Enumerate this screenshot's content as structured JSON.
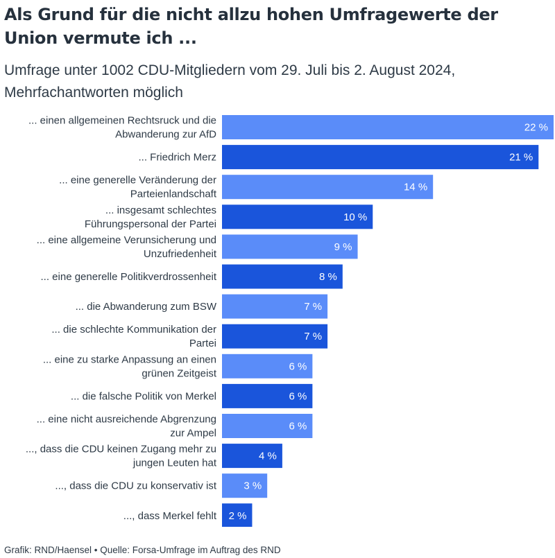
{
  "title": "Als Grund für die nicht allzu hohen Umfragewerte der Union vermute ich ...",
  "subtitle": "Umfrage unter 1002 CDU-Mitgliedern vom 29. Juli bis 2. August 2024, Mehrfachantworten möglich",
  "footer": "Grafik: RND/Haensel • Quelle: Forsa-Umfrage im Auftrag des RND",
  "colors": {
    "light": "#5a8cf9",
    "dark": "#1a55db"
  },
  "chart_data": {
    "type": "bar",
    "orientation": "horizontal",
    "unit": "%",
    "xlim": [
      0,
      22
    ],
    "categories": [
      [
        "... einen allgemeinen Rechtsruck und die",
        "Abwanderung zur AfD"
      ],
      [
        "... Friedrich Merz"
      ],
      [
        "... eine generelle Veränderung der",
        "Parteienlandschaft"
      ],
      [
        "... insgesamt schlechtes",
        "Führungspersonal der Partei"
      ],
      [
        "... eine allgemeine Verunsicherung und",
        "Unzufriedenheit"
      ],
      [
        "... eine generelle Politikverdrossenheit"
      ],
      [
        "... die Abwanderung zum BSW"
      ],
      [
        "... die schlechte Kommunikation der",
        "Partei"
      ],
      [
        "... eine zu starke Anpassung an einen",
        "grünen Zeitgeist"
      ],
      [
        "... die falsche Politik von Merkel"
      ],
      [
        "... eine nicht ausreichende Abgrenzung",
        "zur Ampel"
      ],
      [
        "..., dass die CDU keinen Zugang mehr zu",
        "jungen Leuten hat"
      ],
      [
        "..., dass die CDU zu konservativ ist"
      ],
      [
        "..., dass Merkel fehlt"
      ]
    ],
    "values": [
      22,
      21,
      14,
      10,
      9,
      8,
      7,
      7,
      6,
      6,
      6,
      4,
      3,
      2
    ],
    "value_labels": [
      "22 %",
      "21 %",
      "14 %",
      "10 %",
      "9 %",
      "8 %",
      "7 %",
      "7 %",
      "6 %",
      "6 %",
      "6 %",
      "4 %",
      "3 %",
      "2 %"
    ],
    "legend": "none",
    "grid": false
  }
}
